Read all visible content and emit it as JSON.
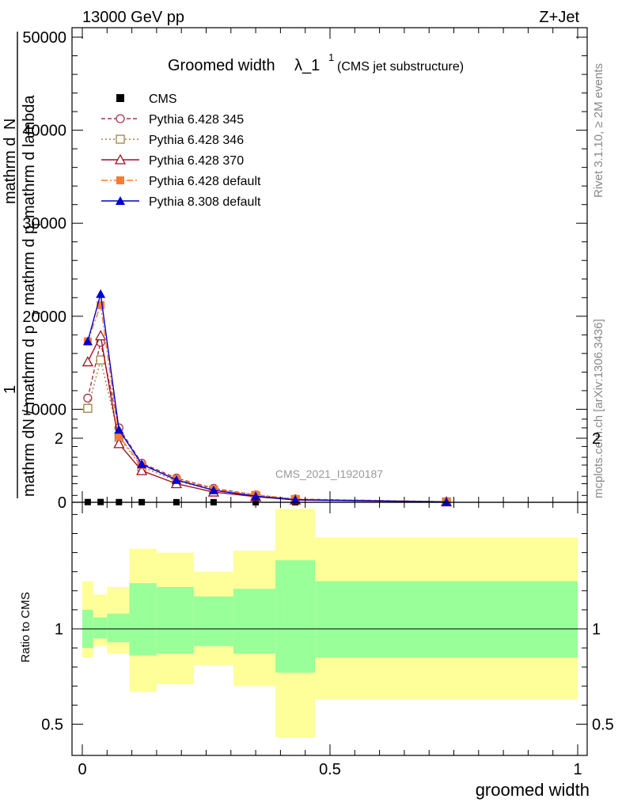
{
  "header": {
    "energy_label": "13000 GeV pp",
    "process_label": "Z+Jet"
  },
  "side_labels": {
    "rivet": "Rivet 3.1.10, ≥ 2M events",
    "mcplots": "mcplots.cern.ch [arXiv:1306.3436]"
  },
  "chart_data": [
    {
      "type": "line",
      "title_main": "Groomed width",
      "title_lambda": "λ_1",
      "title_sup": "1",
      "title_paren": "(CMS jet substructure)",
      "watermark": "CMS_2021_I1920187",
      "ylabel_top": "1",
      "ylabel_lines": [
        "mathrm d",
        "N",
        "mathrm dN / mathrm d p",
        "T",
        "mathrm d p",
        "T",
        "mathrm d lambda"
      ],
      "xlim": [
        -0.02,
        1.0
      ],
      "ylim": [
        0,
        50000
      ],
      "yticks": [
        0,
        10000,
        20000,
        30000,
        40000,
        50000
      ],
      "ytick_labels": [
        "0",
        "10000",
        "20000",
        "30000",
        "40000",
        "50000"
      ],
      "x": [
        0.011,
        0.037,
        0.074,
        0.12,
        0.19,
        0.265,
        0.35,
        0.43,
        0.735
      ],
      "series": [
        {
          "name": "CMS",
          "color": "#000000",
          "marker": "square",
          "dash": "",
          "values": [
            25,
            30,
            20,
            15,
            10,
            8,
            5,
            3,
            1
          ]
        },
        {
          "name": "Pythia 6.428 345",
          "color": "#b03050",
          "marker": "open-circle",
          "dash": "5,3",
          "values": [
            11200,
            17200,
            8000,
            4200,
            2600,
            1500,
            800,
            350,
            60
          ]
        },
        {
          "name": "Pythia 6.428 346",
          "color": "#a08040",
          "marker": "open-square",
          "dash": "2,3",
          "values": [
            10100,
            15300,
            7000,
            3800,
            2300,
            1300,
            700,
            300,
            50
          ]
        },
        {
          "name": "Pythia 6.428 370",
          "color": "#a01020",
          "marker": "open-triangle",
          "dash": "",
          "values": [
            15100,
            17900,
            6300,
            3400,
            2000,
            1100,
            600,
            250,
            40
          ]
        },
        {
          "name": "Pythia 6.428 default",
          "color": "#ff7a30",
          "marker": "square",
          "dash": "8,3,2,3",
          "values": [
            17300,
            21200,
            7100,
            4000,
            2500,
            1400,
            800,
            330,
            55
          ]
        },
        {
          "name": "Pythia 8.308 default",
          "color": "#0000d0",
          "marker": "triangle",
          "dash": "",
          "values": [
            17300,
            22400,
            7800,
            4100,
            2400,
            1300,
            650,
            280,
            45
          ]
        }
      ]
    },
    {
      "type": "area",
      "ylabel": "Ratio to CMS",
      "xlabel": "groomed width",
      "xlim": [
        -0.02,
        1.0
      ],
      "ylim": [
        0.4,
        2.3
      ],
      "yticks": [
        0.5,
        1,
        2
      ],
      "ytick_labels": [
        "0.5",
        "1",
        "2"
      ],
      "xticks": [
        0,
        0.5,
        1
      ],
      "xtick_labels": [
        "0",
        "0.5",
        "1"
      ],
      "bins": [
        {
          "x0": 0.0,
          "x1": 0.022,
          "stat_lo": 0.9,
          "stat_hi": 1.1,
          "tot_lo": 0.85,
          "tot_hi": 1.25
        },
        {
          "x0": 0.022,
          "x1": 0.05,
          "stat_lo": 0.95,
          "stat_hi": 1.06,
          "tot_lo": 0.91,
          "tot_hi": 1.18
        },
        {
          "x0": 0.05,
          "x1": 0.095,
          "stat_lo": 0.93,
          "stat_hi": 1.08,
          "tot_lo": 0.87,
          "tot_hi": 1.22
        },
        {
          "x0": 0.095,
          "x1": 0.15,
          "stat_lo": 0.86,
          "stat_hi": 1.24,
          "tot_lo": 0.67,
          "tot_hi": 1.42
        },
        {
          "x0": 0.15,
          "x1": 0.225,
          "stat_lo": 0.87,
          "stat_hi": 1.22,
          "tot_lo": 0.71,
          "tot_hi": 1.4
        },
        {
          "x0": 0.225,
          "x1": 0.305,
          "stat_lo": 0.91,
          "stat_hi": 1.17,
          "tot_lo": 0.81,
          "tot_hi": 1.3
        },
        {
          "x0": 0.305,
          "x1": 0.39,
          "stat_lo": 0.87,
          "stat_hi": 1.21,
          "tot_lo": 0.7,
          "tot_hi": 1.41
        },
        {
          "x0": 0.39,
          "x1": 0.47,
          "stat_lo": 0.77,
          "stat_hi": 1.36,
          "tot_lo": 0.43,
          "tot_hi": 1.63
        },
        {
          "x0": 0.47,
          "x1": 1.0,
          "stat_lo": 0.85,
          "stat_hi": 1.25,
          "tot_lo": 0.63,
          "tot_hi": 1.48
        }
      ],
      "stat_color": "#99ff99",
      "total_color": "#ffff99"
    }
  ]
}
